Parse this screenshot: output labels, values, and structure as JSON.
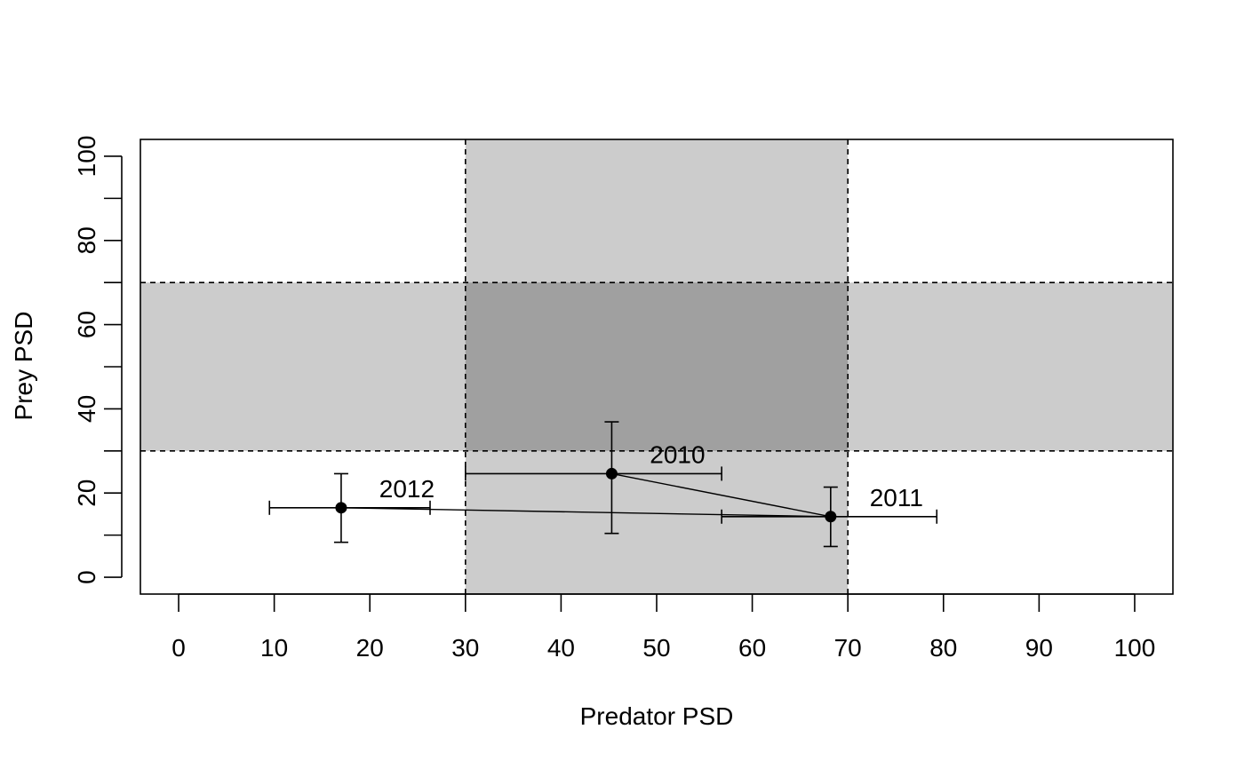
{
  "chart_data": {
    "type": "scatter",
    "title": "",
    "xlabel": "Predator PSD",
    "ylabel": "Prey PSD",
    "xlim": [
      -4,
      104
    ],
    "ylim": [
      -4,
      104
    ],
    "x_ticks": [
      0,
      10,
      20,
      30,
      40,
      50,
      60,
      70,
      80,
      90,
      100
    ],
    "y_ticks": [
      0,
      20,
      40,
      60,
      80,
      100
    ],
    "y_minor_ticks": [
      10,
      30,
      50,
      70,
      90
    ],
    "grid": false,
    "legend": "none",
    "reference_lines": {
      "x": [
        30,
        70
      ],
      "y": [
        30,
        70
      ],
      "style": "dashed"
    },
    "shaded_zones": [
      {
        "axis": "x",
        "range": [
          30,
          70
        ],
        "color": "#cccccc"
      },
      {
        "axis": "y",
        "range": [
          30,
          70
        ],
        "color": "#cccccc"
      },
      {
        "axis": "both",
        "range_x": [
          30,
          70
        ],
        "range_y": [
          30,
          70
        ],
        "color": "#a0a0a0"
      }
    ],
    "connect_points": true,
    "points": [
      {
        "label": "2010",
        "x": 45.3,
        "y": 24.6,
        "x_err": [
          30,
          56.8
        ],
        "y_err": [
          10.4,
          36.9
        ]
      },
      {
        "label": "2011",
        "x": 68.2,
        "y": 14.4,
        "x_err": [
          56.8,
          79.3
        ],
        "y_err": [
          7.3,
          21.4
        ]
      },
      {
        "label": "2012",
        "x": 17.0,
        "y": 16.5,
        "x_err": [
          9.5,
          26.3
        ],
        "y_err": [
          8.3,
          24.6
        ]
      }
    ]
  }
}
